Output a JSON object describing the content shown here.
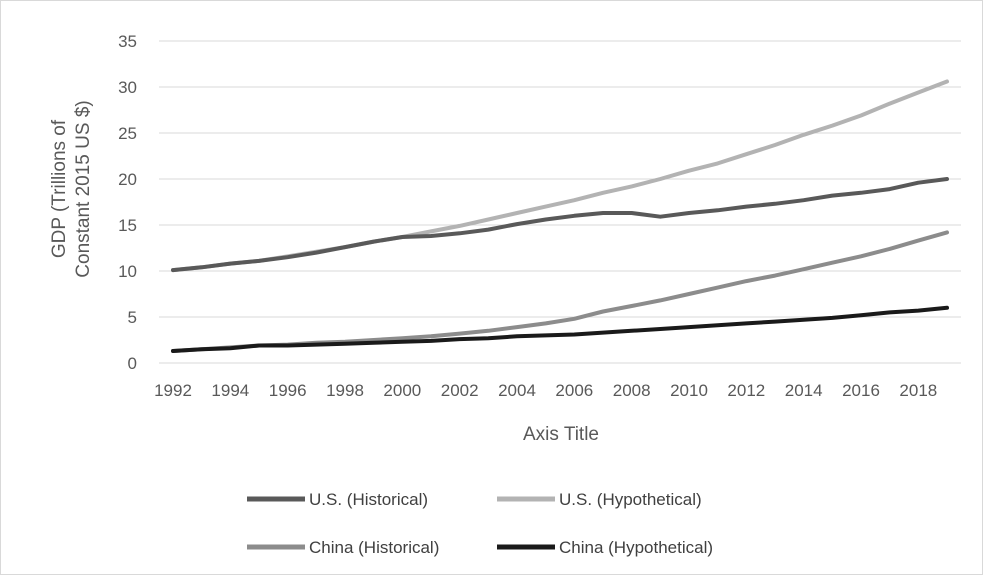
{
  "chart_data": {
    "type": "line",
    "xlabel": "Axis Title",
    "ylabel_lines": [
      "GDP (Trillions of",
      "Constant 2015 US $)"
    ],
    "ylim": [
      0,
      35
    ],
    "y_ticks": [
      0,
      5,
      10,
      15,
      20,
      25,
      30,
      35
    ],
    "x_ticks": [
      "1992",
      "1994",
      "1996",
      "1998",
      "2000",
      "2002",
      "2004",
      "2006",
      "2008",
      "2010",
      "2012",
      "2014",
      "2016",
      "2018"
    ],
    "x": [
      1992,
      1993,
      1994,
      1995,
      1996,
      1997,
      1998,
      1999,
      2000,
      2001,
      2002,
      2003,
      2004,
      2005,
      2006,
      2007,
      2008,
      2009,
      2010,
      2011,
      2012,
      2013,
      2014,
      2015,
      2016,
      2017,
      2018,
      2019
    ],
    "grid": true,
    "legend_position": "bottom",
    "series": [
      {
        "name": "U.S. (Historical)",
        "color": "#595959",
        "values": [
          10.1,
          10.4,
          10.8,
          11.1,
          11.5,
          12.0,
          12.6,
          13.2,
          13.7,
          13.8,
          14.1,
          14.5,
          15.1,
          15.6,
          16.0,
          16.3,
          16.3,
          15.9,
          16.3,
          16.6,
          17.0,
          17.3,
          17.7,
          18.2,
          18.5,
          18.9,
          19.6,
          20.0
        ]
      },
      {
        "name": "U.S. (Hypothetical)",
        "color": "#b3b3b3",
        "values": [
          10.1,
          10.4,
          10.8,
          11.1,
          11.6,
          12.1,
          12.6,
          13.2,
          13.7,
          14.3,
          14.9,
          15.6,
          16.3,
          17.0,
          17.7,
          18.5,
          19.2,
          20.0,
          20.9,
          21.7,
          22.7,
          23.7,
          24.8,
          25.8,
          26.9,
          28.2,
          29.4,
          30.6
        ]
      },
      {
        "name": "China (Historical)",
        "color": "#8c8c8c",
        "values": [
          1.3,
          1.5,
          1.7,
          1.9,
          2.0,
          2.2,
          2.3,
          2.5,
          2.7,
          2.9,
          3.2,
          3.5,
          3.9,
          4.3,
          4.8,
          5.6,
          6.2,
          6.8,
          7.5,
          8.2,
          8.9,
          9.5,
          10.2,
          10.9,
          11.6,
          12.4,
          13.3,
          14.2
        ]
      },
      {
        "name": "China (Hypothetical)",
        "color": "#1a1a1a",
        "values": [
          1.3,
          1.5,
          1.6,
          1.9,
          1.9,
          2.0,
          2.1,
          2.2,
          2.3,
          2.4,
          2.6,
          2.7,
          2.9,
          3.0,
          3.1,
          3.3,
          3.5,
          3.7,
          3.9,
          4.1,
          4.3,
          4.5,
          4.7,
          4.9,
          5.2,
          5.5,
          5.7,
          6.0
        ]
      }
    ]
  }
}
